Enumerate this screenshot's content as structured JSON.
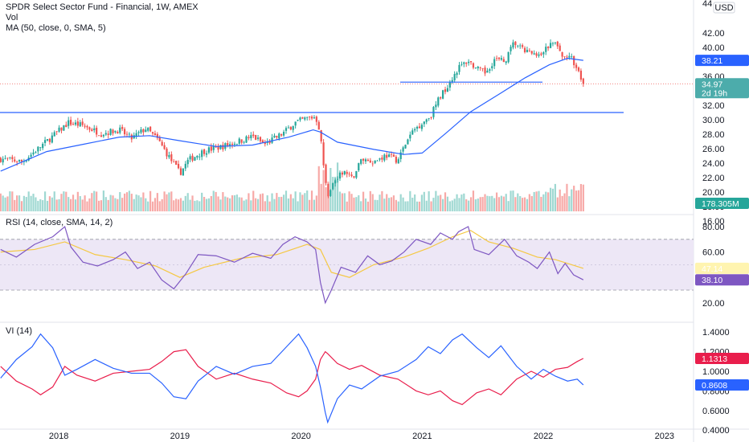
{
  "header": {
    "title": "SPDR Select Sector Fund - Financial, 1W, AMEX",
    "vol_label": "Vol",
    "ma_label": "MA (50, close, 0, SMA, 5)",
    "rsi_label": "RSI (14, close, SMA, 14, 2)",
    "vi_label": "VI (14)",
    "currency": "USD"
  },
  "colors": {
    "up": "#26a69a",
    "down": "#ef5350",
    "ma": "#2962ff",
    "rsi": "#7e57c2",
    "rsi_ma": "#f5c842",
    "rsi_band": "#ede7f6",
    "vi_plus": "#2962ff",
    "vi_minus": "#e91e4c",
    "hline": "#2962ff"
  },
  "chart_data": [
    {
      "type": "candlestick",
      "panel": "price",
      "price_ticks": [
        "44",
        "42.00",
        "40.00",
        "38.00",
        "36.00",
        "34.00",
        "32.00",
        "30.00",
        "28.00",
        "26.00",
        "24.00",
        "22.00",
        "20.00",
        "18.00",
        "16.00"
      ],
      "x_ticks": [
        "2018",
        "2019",
        "2020",
        "2021",
        "2022",
        "2023"
      ],
      "price_path": [
        [
          2017.52,
          24.6
        ],
        [
          2017.7,
          24.2
        ],
        [
          2017.9,
          27.0
        ],
        [
          2018.08,
          29.6
        ],
        [
          2018.2,
          29.2
        ],
        [
          2018.35,
          28.1
        ],
        [
          2018.5,
          28.6
        ],
        [
          2018.6,
          27.4
        ],
        [
          2018.72,
          28.8
        ],
        [
          2018.82,
          27.2
        ],
        [
          2018.92,
          24.6
        ],
        [
          2019.0,
          22.6
        ],
        [
          2019.07,
          24.4
        ],
        [
          2019.2,
          25.7
        ],
        [
          2019.35,
          26.3
        ],
        [
          2019.5,
          27.1
        ],
        [
          2019.6,
          27.7
        ],
        [
          2019.7,
          26.6
        ],
        [
          2019.85,
          28.1
        ],
        [
          2019.95,
          29.6
        ],
        [
          2020.05,
          30.2
        ],
        [
          2020.12,
          30.4
        ],
        [
          2020.16,
          28.3
        ],
        [
          2020.19,
          22.6
        ],
        [
          2020.22,
          19.6
        ],
        [
          2020.27,
          21.3
        ],
        [
          2020.35,
          22.9
        ],
        [
          2020.42,
          21.8
        ],
        [
          2020.5,
          24.6
        ],
        [
          2020.6,
          24.2
        ],
        [
          2020.7,
          25.1
        ],
        [
          2020.8,
          24.4
        ],
        [
          2020.86,
          26.6
        ],
        [
          2020.93,
          28.6
        ],
        [
          2021.0,
          29.6
        ],
        [
          2021.07,
          30.6
        ],
        [
          2021.14,
          33.0
        ],
        [
          2021.2,
          34.5
        ],
        [
          2021.3,
          37.2
        ],
        [
          2021.38,
          38.2
        ],
        [
          2021.45,
          37.0
        ],
        [
          2021.52,
          36.5
        ],
        [
          2021.6,
          38.4
        ],
        [
          2021.68,
          38.0
        ],
        [
          2021.76,
          40.7
        ],
        [
          2021.83,
          39.6
        ],
        [
          2021.9,
          39.2
        ],
        [
          2021.96,
          38.6
        ],
        [
          2022.05,
          40.3
        ],
        [
          2022.1,
          40.6
        ],
        [
          2022.16,
          38.5
        ],
        [
          2022.22,
          38.9
        ],
        [
          2022.26,
          37.2
        ],
        [
          2022.3,
          36.2
        ],
        [
          2022.33,
          34.97
        ]
      ],
      "moving_average": {
        "name": "MA (50, close, 0, SMA, 5)",
        "points": [
          [
            2017.52,
            22.9
          ],
          [
            2017.9,
            25.6
          ],
          [
            2018.2,
            26.6
          ],
          [
            2018.5,
            27.6
          ],
          [
            2018.75,
            27.8
          ],
          [
            2019.0,
            27.1
          ],
          [
            2019.3,
            26.3
          ],
          [
            2019.6,
            26.5
          ],
          [
            2019.9,
            27.6
          ],
          [
            2020.1,
            28.6
          ],
          [
            2020.16,
            28.3
          ],
          [
            2020.3,
            26.9
          ],
          [
            2020.6,
            25.9
          ],
          [
            2020.85,
            25.2
          ],
          [
            2021.0,
            25.4
          ],
          [
            2021.2,
            28.2
          ],
          [
            2021.4,
            31.1
          ],
          [
            2021.65,
            33.7
          ],
          [
            2021.85,
            35.8
          ],
          [
            2022.05,
            37.6
          ],
          [
            2022.2,
            38.5
          ],
          [
            2022.33,
            38.21
          ]
        ]
      },
      "horizontal_lines": [
        35.2,
        31.0
      ],
      "last_price": "34.97",
      "last_price_countdown": "2d 19h",
      "ma_value": "38.21",
      "volume_last": "178.305M"
    },
    {
      "type": "line",
      "panel": "rsi",
      "title": "RSI (14, close, SMA, 14, 2)",
      "y_ticks": [
        "80.00",
        "60.00",
        "20.00"
      ],
      "band": [
        30,
        70
      ],
      "series": [
        {
          "name": "RSI",
          "points": [
            [
              2017.52,
              62
            ],
            [
              2017.65,
              56
            ],
            [
              2017.8,
              66
            ],
            [
              2017.95,
              72
            ],
            [
              2018.05,
              80
            ],
            [
              2018.1,
              64
            ],
            [
              2018.2,
              52
            ],
            [
              2018.32,
              49
            ],
            [
              2018.45,
              54
            ],
            [
              2018.55,
              60
            ],
            [
              2018.65,
              47
            ],
            [
              2018.75,
              52
            ],
            [
              2018.85,
              38
            ],
            [
              2018.95,
              31
            ],
            [
              2019.05,
              43
            ],
            [
              2019.15,
              58
            ],
            [
              2019.3,
              57
            ],
            [
              2019.45,
              52
            ],
            [
              2019.6,
              59
            ],
            [
              2019.75,
              55
            ],
            [
              2019.85,
              66
            ],
            [
              2019.95,
              72
            ],
            [
              2020.05,
              68
            ],
            [
              2020.12,
              62
            ],
            [
              2020.16,
              36
            ],
            [
              2020.2,
              20
            ],
            [
              2020.25,
              30
            ],
            [
              2020.33,
              48
            ],
            [
              2020.45,
              44
            ],
            [
              2020.55,
              57
            ],
            [
              2020.65,
              50
            ],
            [
              2020.75,
              53
            ],
            [
              2020.85,
              60
            ],
            [
              2020.95,
              70
            ],
            [
              2021.07,
              66
            ],
            [
              2021.15,
              75
            ],
            [
              2021.25,
              70
            ],
            [
              2021.3,
              76
            ],
            [
              2021.38,
              80
            ],
            [
              2021.43,
              62
            ],
            [
              2021.55,
              58
            ],
            [
              2021.68,
              70
            ],
            [
              2021.78,
              57
            ],
            [
              2021.88,
              52
            ],
            [
              2021.95,
              47
            ],
            [
              2022.05,
              60
            ],
            [
              2022.12,
              43
            ],
            [
              2022.18,
              51
            ],
            [
              2022.25,
              42
            ],
            [
              2022.33,
              38.1
            ]
          ]
        },
        {
          "name": "RSI-based MA",
          "points": [
            [
              2017.52,
              60
            ],
            [
              2017.8,
              62
            ],
            [
              2018.05,
              68
            ],
            [
              2018.3,
              58
            ],
            [
              2018.55,
              54
            ],
            [
              2018.8,
              49
            ],
            [
              2019.0,
              40
            ],
            [
              2019.2,
              48
            ],
            [
              2019.5,
              55
            ],
            [
              2019.8,
              58
            ],
            [
              2020.05,
              66
            ],
            [
              2020.16,
              62
            ],
            [
              2020.25,
              44
            ],
            [
              2020.4,
              40
            ],
            [
              2020.6,
              50
            ],
            [
              2020.85,
              56
            ],
            [
              2021.05,
              63
            ],
            [
              2021.25,
              72
            ],
            [
              2021.4,
              77
            ],
            [
              2021.55,
              68
            ],
            [
              2021.75,
              63
            ],
            [
              2021.95,
              56
            ],
            [
              2022.1,
              54
            ],
            [
              2022.33,
              47.14
            ]
          ]
        }
      ],
      "last_values": {
        "rsi": "38.10",
        "rsi_ma": "47.14"
      }
    },
    {
      "type": "line",
      "panel": "vi",
      "title": "VI (14)",
      "y_ticks": [
        "1.4000",
        "1.2000",
        "1.0000",
        "0.8000",
        "0.6000",
        "0.4000"
      ],
      "series": [
        {
          "name": "VI+",
          "points": [
            [
              2017.52,
              0.93
            ],
            [
              2017.65,
              1.12
            ],
            [
              2017.78,
              1.25
            ],
            [
              2017.85,
              1.38
            ],
            [
              2017.95,
              1.24
            ],
            [
              2018.05,
              0.96
            ],
            [
              2018.15,
              1.02
            ],
            [
              2018.3,
              1.12
            ],
            [
              2018.45,
              1.03
            ],
            [
              2018.6,
              0.98
            ],
            [
              2018.75,
              0.98
            ],
            [
              2018.85,
              0.88
            ],
            [
              2018.95,
              0.74
            ],
            [
              2019.05,
              0.72
            ],
            [
              2019.15,
              0.9
            ],
            [
              2019.3,
              1.05
            ],
            [
              2019.45,
              0.97
            ],
            [
              2019.6,
              1.05
            ],
            [
              2019.75,
              1.08
            ],
            [
              2019.88,
              1.25
            ],
            [
              2019.98,
              1.38
            ],
            [
              2020.05,
              1.24
            ],
            [
              2020.12,
              1.05
            ],
            [
              2020.16,
              0.84
            ],
            [
              2020.2,
              0.58
            ],
            [
              2020.22,
              0.48
            ],
            [
              2020.3,
              0.72
            ],
            [
              2020.4,
              0.86
            ],
            [
              2020.5,
              0.82
            ],
            [
              2020.65,
              0.95
            ],
            [
              2020.8,
              1.0
            ],
            [
              2020.95,
              1.12
            ],
            [
              2021.05,
              1.25
            ],
            [
              2021.15,
              1.18
            ],
            [
              2021.25,
              1.32
            ],
            [
              2021.33,
              1.38
            ],
            [
              2021.45,
              1.24
            ],
            [
              2021.55,
              1.14
            ],
            [
              2021.65,
              1.26
            ],
            [
              2021.78,
              1.05
            ],
            [
              2021.9,
              0.92
            ],
            [
              2022.0,
              1.02
            ],
            [
              2022.1,
              0.95
            ],
            [
              2022.2,
              0.9
            ],
            [
              2022.28,
              0.92
            ],
            [
              2022.33,
              0.8608
            ]
          ]
        },
        {
          "name": "VI-",
          "points": [
            [
              2017.52,
              1.05
            ],
            [
              2017.65,
              0.9
            ],
            [
              2017.78,
              0.82
            ],
            [
              2017.85,
              0.76
            ],
            [
              2017.95,
              0.84
            ],
            [
              2018.05,
              1.05
            ],
            [
              2018.15,
              0.96
            ],
            [
              2018.3,
              0.9
            ],
            [
              2018.45,
              0.98
            ],
            [
              2018.6,
              1.0
            ],
            [
              2018.75,
              1.02
            ],
            [
              2018.85,
              1.1
            ],
            [
              2018.95,
              1.2
            ],
            [
              2019.05,
              1.22
            ],
            [
              2019.15,
              1.05
            ],
            [
              2019.3,
              0.92
            ],
            [
              2019.45,
              0.98
            ],
            [
              2019.6,
              0.92
            ],
            [
              2019.75,
              0.88
            ],
            [
              2019.88,
              0.78
            ],
            [
              2019.98,
              0.74
            ],
            [
              2020.05,
              0.8
            ],
            [
              2020.12,
              0.92
            ],
            [
              2020.16,
              1.12
            ],
            [
              2020.2,
              1.2
            ],
            [
              2020.22,
              1.18
            ],
            [
              2020.3,
              1.08
            ],
            [
              2020.4,
              1.02
            ],
            [
              2020.5,
              1.06
            ],
            [
              2020.65,
              0.96
            ],
            [
              2020.8,
              0.92
            ],
            [
              2020.95,
              0.8
            ],
            [
              2021.05,
              0.76
            ],
            [
              2021.15,
              0.8
            ],
            [
              2021.25,
              0.7
            ],
            [
              2021.33,
              0.66
            ],
            [
              2021.45,
              0.78
            ],
            [
              2021.55,
              0.82
            ],
            [
              2021.65,
              0.76
            ],
            [
              2021.78,
              0.92
            ],
            [
              2021.9,
              1.0
            ],
            [
              2022.0,
              0.94
            ],
            [
              2022.1,
              1.02
            ],
            [
              2022.2,
              1.04
            ],
            [
              2022.28,
              1.1
            ],
            [
              2022.33,
              1.1313
            ]
          ]
        }
      ],
      "last_values": {
        "vi_plus": "0.8608",
        "vi_minus": "1.1313"
      }
    }
  ]
}
